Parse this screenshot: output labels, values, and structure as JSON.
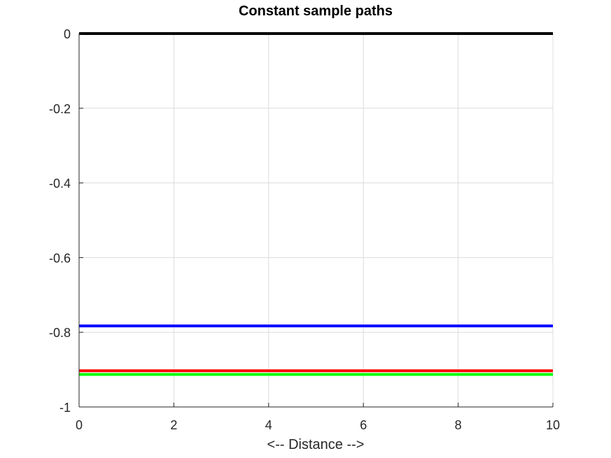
{
  "chart_data": {
    "type": "line",
    "title": "Constant sample paths",
    "xlabel": "<-- Distance -->",
    "ylabel": "",
    "xlim": [
      0,
      10
    ],
    "ylim": [
      -1,
      0
    ],
    "xticks": [
      0,
      2,
      4,
      6,
      8,
      10
    ],
    "yticks": [
      0,
      -0.2,
      -0.4,
      -0.6,
      -0.8,
      -1
    ],
    "xtick_labels": [
      "0",
      "2",
      "4",
      "6",
      "8",
      "10"
    ],
    "ytick_labels": [
      "0",
      "-0.2",
      "-0.4",
      "-0.6",
      "-0.8",
      "-1"
    ],
    "grid": true,
    "series": [
      {
        "color": "#000000",
        "x": [
          0,
          10
        ],
        "y": [
          0,
          0
        ]
      },
      {
        "color": "#0000ff",
        "x": [
          0,
          10
        ],
        "y": [
          -0.783,
          -0.783
        ]
      },
      {
        "color": "#ff0000",
        "x": [
          0,
          10
        ],
        "y": [
          -0.903,
          -0.903
        ]
      },
      {
        "color": "#00ff00",
        "x": [
          0,
          10
        ],
        "y": [
          -0.913,
          -0.913
        ]
      }
    ]
  }
}
